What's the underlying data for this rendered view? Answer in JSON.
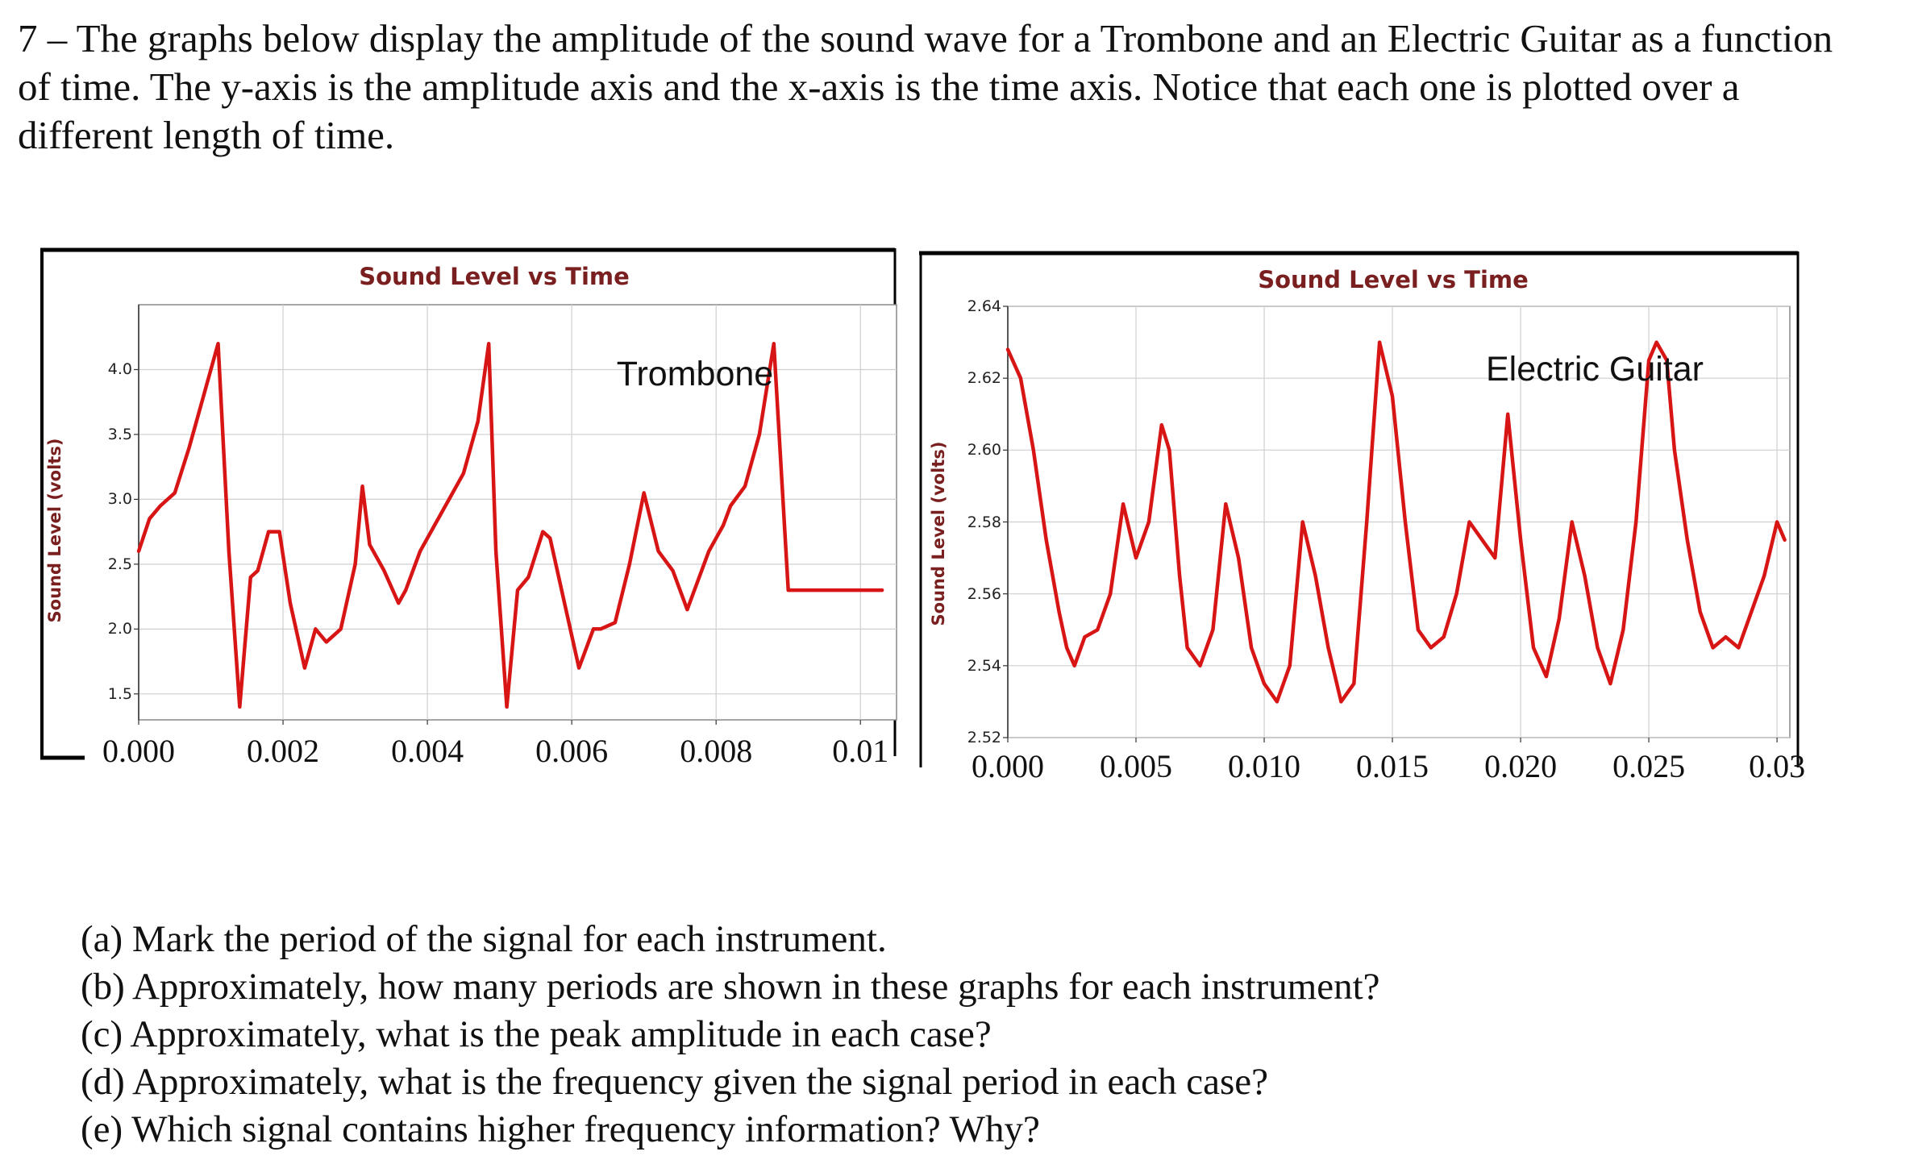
{
  "intro": {
    "line1": "7 – The graphs below display the amplitude of the sound wave for a Trombone and an Electric Guitar as a function",
    "line2": "of time. The y-axis is the amplitude axis and the x-axis is the time axis. Notice that each one is plotted over a",
    "line3": "different length of time."
  },
  "chart_data": [
    {
      "type": "line",
      "title": "Sound Level vs Time",
      "ylabel": "Sound Level (volts)",
      "annotation": "Trombone",
      "ylim": [
        1.3,
        4.5
      ],
      "xlim": [
        0,
        0.0105
      ],
      "y_ticks": [
        "4.0",
        "3.5",
        "3.0",
        "2.5",
        "2.0",
        "1.5"
      ],
      "y_tick_values": [
        4.0,
        3.5,
        3.0,
        2.5,
        2.0,
        1.5
      ],
      "x_ticks": [
        "0.000",
        "0.002",
        "0.004",
        "0.006",
        "0.008",
        "0.01"
      ],
      "x_tick_values": [
        0,
        0.002,
        0.004,
        0.006,
        0.008,
        0.01
      ],
      "grid": true,
      "line_color": "#d81515",
      "series": [
        {
          "x": [
            0,
            0.00015,
            0.0003,
            0.0005,
            0.0007,
            0.0009,
            0.0011,
            0.00125,
            0.0014,
            0.00155,
            0.00165,
            0.0018,
            0.00195,
            0.0021,
            0.0023,
            0.00245,
            0.0026,
            0.0028,
            0.003,
            0.0031,
            0.0032,
            0.0034,
            0.0036,
            0.0037,
            0.0039,
            0.0041,
            0.0043,
            0.0045,
            0.0047,
            0.00485,
            0.00495,
            0.0051,
            0.00525,
            0.0054,
            0.0056,
            0.0057,
            0.0059,
            0.0061,
            0.0063,
            0.0064,
            0.0066,
            0.0068,
            0.007,
            0.0072,
            0.0074,
            0.0076,
            0.0077,
            0.0079,
            0.0081,
            0.0082,
            0.0084,
            0.0086,
            0.0088,
            0.009,
            0.0092,
            0.0094,
            0.0096,
            0.0098,
            0.01,
            0.0102,
            0.0103
          ],
          "y": [
            2.6,
            2.85,
            2.95,
            3.05,
            3.4,
            3.8,
            4.2,
            2.6,
            1.4,
            2.4,
            2.45,
            2.75,
            2.75,
            2.2,
            1.7,
            2.0,
            1.9,
            2.0,
            2.5,
            3.1,
            2.65,
            2.45,
            2.2,
            2.3,
            2.6,
            2.8,
            3.0,
            3.2,
            3.6,
            4.2,
            2.6,
            1.4,
            2.3,
            2.4,
            2.75,
            2.7,
            2.2,
            1.7,
            2.0,
            2.0,
            2.05,
            2.5,
            3.05,
            2.6,
            2.45,
            2.15,
            2.3,
            2.6,
            2.8,
            2.95,
            3.1,
            3.5,
            4.2,
            2.3,
            2.3,
            2.3,
            2.3,
            2.3,
            2.3,
            2.3,
            2.3
          ]
        }
      ]
    },
    {
      "type": "line",
      "title": "Sound Level vs Time",
      "ylabel": "Sound Level (volts)",
      "annotation": "Electric Guitar",
      "ylim": [
        2.52,
        2.64
      ],
      "xlim": [
        0,
        0.0305
      ],
      "y_ticks": [
        "2.64",
        "2.62",
        "2.60",
        "2.58",
        "2.56",
        "2.54",
        "2.52"
      ],
      "y_tick_values": [
        2.64,
        2.62,
        2.6,
        2.58,
        2.56,
        2.54,
        2.52
      ],
      "x_ticks": [
        "0.000",
        "0.005",
        "0.010",
        "0.015",
        "0.020",
        "0.025",
        "0.03"
      ],
      "x_tick_values": [
        0,
        0.005,
        0.01,
        0.015,
        0.02,
        0.025,
        0.03
      ],
      "grid": true,
      "line_color": "#d81515",
      "series": [
        {
          "x": [
            0,
            0.0005,
            0.001,
            0.0015,
            0.002,
            0.0023,
            0.0026,
            0.003,
            0.0035,
            0.004,
            0.0045,
            0.005,
            0.0055,
            0.006,
            0.0063,
            0.0067,
            0.007,
            0.0075,
            0.008,
            0.0085,
            0.009,
            0.0095,
            0.01,
            0.0105,
            0.011,
            0.0115,
            0.012,
            0.0125,
            0.013,
            0.0135,
            0.014,
            0.0145,
            0.015,
            0.0155,
            0.016,
            0.0165,
            0.017,
            0.0175,
            0.018,
            0.0185,
            0.019,
            0.0195,
            0.02,
            0.0205,
            0.021,
            0.0215,
            0.022,
            0.0225,
            0.023,
            0.0235,
            0.024,
            0.0245,
            0.025,
            0.0253,
            0.0257,
            0.026,
            0.0265,
            0.027,
            0.0275,
            0.028,
            0.0285,
            0.029,
            0.0295,
            0.03,
            0.0303
          ],
          "y": [
            2.628,
            2.62,
            2.6,
            2.575,
            2.555,
            2.545,
            2.54,
            2.548,
            2.55,
            2.56,
            2.585,
            2.57,
            2.58,
            2.607,
            2.6,
            2.565,
            2.545,
            2.54,
            2.55,
            2.585,
            2.57,
            2.545,
            2.535,
            2.53,
            2.54,
            2.58,
            2.565,
            2.545,
            2.53,
            2.535,
            2.58,
            2.63,
            2.615,
            2.58,
            2.55,
            2.545,
            2.548,
            2.56,
            2.58,
            2.575,
            2.57,
            2.61,
            2.575,
            2.545,
            2.537,
            2.553,
            2.58,
            2.565,
            2.545,
            2.535,
            2.55,
            2.58,
            2.625,
            2.63,
            2.625,
            2.6,
            2.575,
            2.555,
            2.545,
            2.548,
            2.545,
            2.555,
            2.565,
            2.58,
            2.575
          ]
        }
      ]
    }
  ],
  "questions": [
    "(a)  Mark the period of the signal for each instrument.",
    "(b) Approximately, how many periods are shown in these graphs for each instrument?",
    "(c) Approximately, what is the peak amplitude in each case?",
    "(d) Approximately, what is the frequency given the signal period in each case?",
    "(e) Which signal contains higher frequency information? Why?"
  ]
}
